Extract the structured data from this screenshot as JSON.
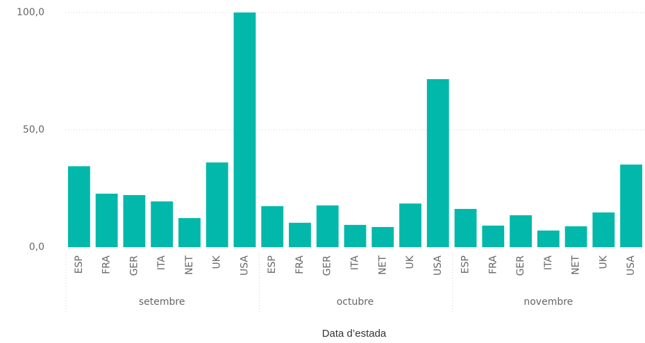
{
  "chart_data": {
    "type": "bar",
    "x_label": "Data d’estada",
    "groups": [
      "setembre",
      "octubre",
      "novembre"
    ],
    "categories": [
      "ESP",
      "FRA",
      "GER",
      "ITA",
      "NET",
      "UK",
      "USA",
      "ESP",
      "FRA",
      "GER",
      "ITA",
      "NET",
      "UK",
      "USA",
      "ESP",
      "FRA",
      "GER",
      "ITA",
      "NET",
      "UK",
      "USA"
    ],
    "values": [
      34.5,
      22.8,
      22.2,
      19.5,
      12.4,
      36.1,
      100,
      17.5,
      10.4,
      17.8,
      9.5,
      8.6,
      18.6,
      71.6,
      16.3,
      9.2,
      13.6,
      7.1,
      8.9,
      14.8,
      35.2
    ],
    "color": "#01b8aa",
    "ylim": [
      0,
      100
    ],
    "yticks": [
      {
        "value": 0,
        "label": "0,0"
      },
      {
        "value": 50,
        "label": "50,0"
      },
      {
        "value": 100,
        "label": "100,0"
      }
    ],
    "grid": true
  }
}
